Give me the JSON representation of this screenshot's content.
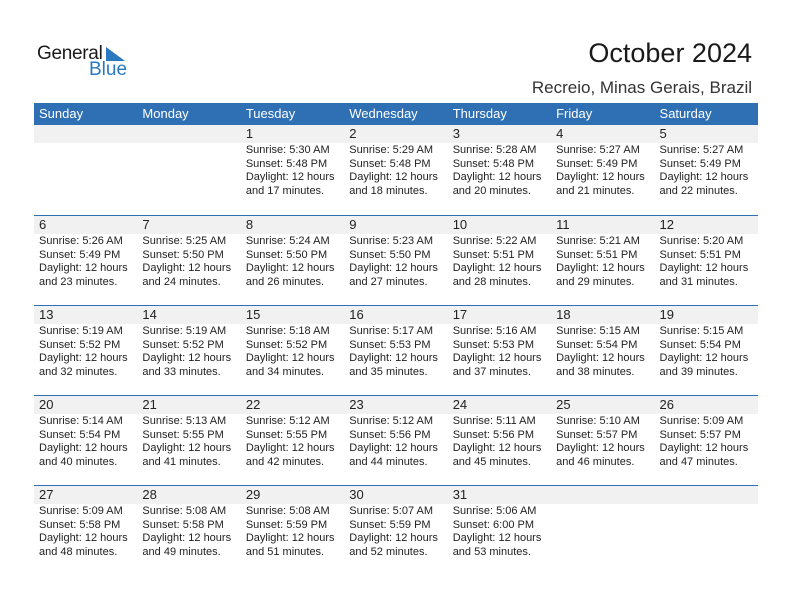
{
  "logo": {
    "text_general": "General",
    "text_blue": "Blue"
  },
  "title": "October 2024",
  "location": "Recreio, Minas Gerais, Brazil",
  "colors": {
    "header": "#2f70b4",
    "logo_blue": "#2a78c0",
    "day_strip": "#f1f1f1"
  },
  "weekdays": [
    "Sunday",
    "Monday",
    "Tuesday",
    "Wednesday",
    "Thursday",
    "Friday",
    "Saturday"
  ],
  "weeks": [
    [
      null,
      null,
      {
        "day": "1",
        "sunrise": "Sunrise: 5:30 AM",
        "sunset": "Sunset: 5:48 PM",
        "daylight": "Daylight: 12 hours",
        "minutes": "and 17 minutes."
      },
      {
        "day": "2",
        "sunrise": "Sunrise: 5:29 AM",
        "sunset": "Sunset: 5:48 PM",
        "daylight": "Daylight: 12 hours",
        "minutes": "and 18 minutes."
      },
      {
        "day": "3",
        "sunrise": "Sunrise: 5:28 AM",
        "sunset": "Sunset: 5:48 PM",
        "daylight": "Daylight: 12 hours",
        "minutes": "and 20 minutes."
      },
      {
        "day": "4",
        "sunrise": "Sunrise: 5:27 AM",
        "sunset": "Sunset: 5:49 PM",
        "daylight": "Daylight: 12 hours",
        "minutes": "and 21 minutes."
      },
      {
        "day": "5",
        "sunrise": "Sunrise: 5:27 AM",
        "sunset": "Sunset: 5:49 PM",
        "daylight": "Daylight: 12 hours",
        "minutes": "and 22 minutes."
      }
    ],
    [
      {
        "day": "6",
        "sunrise": "Sunrise: 5:26 AM",
        "sunset": "Sunset: 5:49 PM",
        "daylight": "Daylight: 12 hours",
        "minutes": "and 23 minutes."
      },
      {
        "day": "7",
        "sunrise": "Sunrise: 5:25 AM",
        "sunset": "Sunset: 5:50 PM",
        "daylight": "Daylight: 12 hours",
        "minutes": "and 24 minutes."
      },
      {
        "day": "8",
        "sunrise": "Sunrise: 5:24 AM",
        "sunset": "Sunset: 5:50 PM",
        "daylight": "Daylight: 12 hours",
        "minutes": "and 26 minutes."
      },
      {
        "day": "9",
        "sunrise": "Sunrise: 5:23 AM",
        "sunset": "Sunset: 5:50 PM",
        "daylight": "Daylight: 12 hours",
        "minutes": "and 27 minutes."
      },
      {
        "day": "10",
        "sunrise": "Sunrise: 5:22 AM",
        "sunset": "Sunset: 5:51 PM",
        "daylight": "Daylight: 12 hours",
        "minutes": "and 28 minutes."
      },
      {
        "day": "11",
        "sunrise": "Sunrise: 5:21 AM",
        "sunset": "Sunset: 5:51 PM",
        "daylight": "Daylight: 12 hours",
        "minutes": "and 29 minutes."
      },
      {
        "day": "12",
        "sunrise": "Sunrise: 5:20 AM",
        "sunset": "Sunset: 5:51 PM",
        "daylight": "Daylight: 12 hours",
        "minutes": "and 31 minutes."
      }
    ],
    [
      {
        "day": "13",
        "sunrise": "Sunrise: 5:19 AM",
        "sunset": "Sunset: 5:52 PM",
        "daylight": "Daylight: 12 hours",
        "minutes": "and 32 minutes."
      },
      {
        "day": "14",
        "sunrise": "Sunrise: 5:19 AM",
        "sunset": "Sunset: 5:52 PM",
        "daylight": "Daylight: 12 hours",
        "minutes": "and 33 minutes."
      },
      {
        "day": "15",
        "sunrise": "Sunrise: 5:18 AM",
        "sunset": "Sunset: 5:52 PM",
        "daylight": "Daylight: 12 hours",
        "minutes": "and 34 minutes."
      },
      {
        "day": "16",
        "sunrise": "Sunrise: 5:17 AM",
        "sunset": "Sunset: 5:53 PM",
        "daylight": "Daylight: 12 hours",
        "minutes": "and 35 minutes."
      },
      {
        "day": "17",
        "sunrise": "Sunrise: 5:16 AM",
        "sunset": "Sunset: 5:53 PM",
        "daylight": "Daylight: 12 hours",
        "minutes": "and 37 minutes."
      },
      {
        "day": "18",
        "sunrise": "Sunrise: 5:15 AM",
        "sunset": "Sunset: 5:54 PM",
        "daylight": "Daylight: 12 hours",
        "minutes": "and 38 minutes."
      },
      {
        "day": "19",
        "sunrise": "Sunrise: 5:15 AM",
        "sunset": "Sunset: 5:54 PM",
        "daylight": "Daylight: 12 hours",
        "minutes": "and 39 minutes."
      }
    ],
    [
      {
        "day": "20",
        "sunrise": "Sunrise: 5:14 AM",
        "sunset": "Sunset: 5:54 PM",
        "daylight": "Daylight: 12 hours",
        "minutes": "and 40 minutes."
      },
      {
        "day": "21",
        "sunrise": "Sunrise: 5:13 AM",
        "sunset": "Sunset: 5:55 PM",
        "daylight": "Daylight: 12 hours",
        "minutes": "and 41 minutes."
      },
      {
        "day": "22",
        "sunrise": "Sunrise: 5:12 AM",
        "sunset": "Sunset: 5:55 PM",
        "daylight": "Daylight: 12 hours",
        "minutes": "and 42 minutes."
      },
      {
        "day": "23",
        "sunrise": "Sunrise: 5:12 AM",
        "sunset": "Sunset: 5:56 PM",
        "daylight": "Daylight: 12 hours",
        "minutes": "and 44 minutes."
      },
      {
        "day": "24",
        "sunrise": "Sunrise: 5:11 AM",
        "sunset": "Sunset: 5:56 PM",
        "daylight": "Daylight: 12 hours",
        "minutes": "and 45 minutes."
      },
      {
        "day": "25",
        "sunrise": "Sunrise: 5:10 AM",
        "sunset": "Sunset: 5:57 PM",
        "daylight": "Daylight: 12 hours",
        "minutes": "and 46 minutes."
      },
      {
        "day": "26",
        "sunrise": "Sunrise: 5:09 AM",
        "sunset": "Sunset: 5:57 PM",
        "daylight": "Daylight: 12 hours",
        "minutes": "and 47 minutes."
      }
    ],
    [
      {
        "day": "27",
        "sunrise": "Sunrise: 5:09 AM",
        "sunset": "Sunset: 5:58 PM",
        "daylight": "Daylight: 12 hours",
        "minutes": "and 48 minutes."
      },
      {
        "day": "28",
        "sunrise": "Sunrise: 5:08 AM",
        "sunset": "Sunset: 5:58 PM",
        "daylight": "Daylight: 12 hours",
        "minutes": "and 49 minutes."
      },
      {
        "day": "29",
        "sunrise": "Sunrise: 5:08 AM",
        "sunset": "Sunset: 5:59 PM",
        "daylight": "Daylight: 12 hours",
        "minutes": "and 51 minutes."
      },
      {
        "day": "30",
        "sunrise": "Sunrise: 5:07 AM",
        "sunset": "Sunset: 5:59 PM",
        "daylight": "Daylight: 12 hours",
        "minutes": "and 52 minutes."
      },
      {
        "day": "31",
        "sunrise": "Sunrise: 5:06 AM",
        "sunset": "Sunset: 6:00 PM",
        "daylight": "Daylight: 12 hours",
        "minutes": "and 53 minutes."
      },
      null,
      null
    ]
  ]
}
